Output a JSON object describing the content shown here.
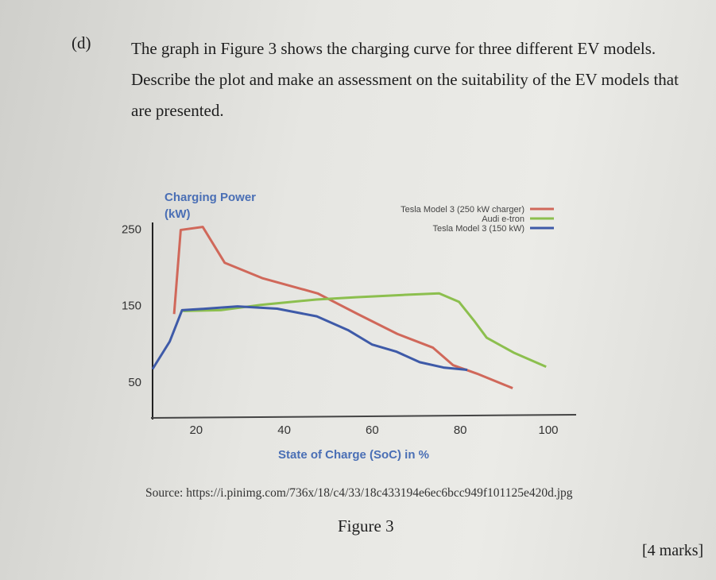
{
  "question": {
    "label": "(d)",
    "text": "The graph in Figure 3 shows the charging curve for three different EV models. Describe the plot and make an assessment on the suitability of the EV models that are presented."
  },
  "source": "Source: https://i.pinimg.com/736x/18/c4/33/18c433194e6ec6bcc949f101125e420d.jpg",
  "figure_caption": "Figure 3",
  "marks": "[4 marks]",
  "chart_data": {
    "type": "line",
    "ylabel_line1": "Charging Power",
    "ylabel_line2": "(kW)",
    "xlabel": "State of Charge (SoC) in %",
    "xticks": [
      "20",
      "40",
      "60",
      "80",
      "100"
    ],
    "yticks": [
      "250",
      "150",
      "50"
    ],
    "xlim": [
      10,
      100
    ],
    "ylim": [
      0,
      260
    ],
    "grid": false,
    "legend_placement": "top-right",
    "series": [
      {
        "name": "Tesla Model 3 (250 kW charger)",
        "color": "#d0685a",
        "x": [
          15,
          16.5,
          21.5,
          26.5,
          35,
          47.6,
          56.7,
          65.7,
          73.8,
          78.4,
          83.8,
          91.9
        ],
        "y": [
          138,
          248,
          252,
          205,
          185,
          165,
          138,
          112,
          94,
          71,
          60,
          41
        ]
      },
      {
        "name": "Audi e-tron",
        "color": "#8cbf4e",
        "x": [
          17,
          25.6,
          34.7,
          47.3,
          56.3,
          67,
          75.2,
          79.7,
          83.3,
          86,
          92.3,
          99.5
        ],
        "y": [
          142,
          143,
          150,
          157,
          160,
          163,
          165,
          154,
          128,
          107,
          87,
          69
        ]
      },
      {
        "name": "Tesla Model 3 (150 kW)",
        "color": "#3e5aa8",
        "x": [
          10.1,
          14,
          16.8,
          22.2,
          29.4,
          38.4,
          47.4,
          54.5,
          60,
          65.4,
          70.8,
          76.2,
          81.6
        ],
        "y": [
          66,
          102,
          143,
          145,
          148,
          145,
          135,
          117,
          98,
          89,
          75,
          68,
          65
        ]
      }
    ]
  }
}
